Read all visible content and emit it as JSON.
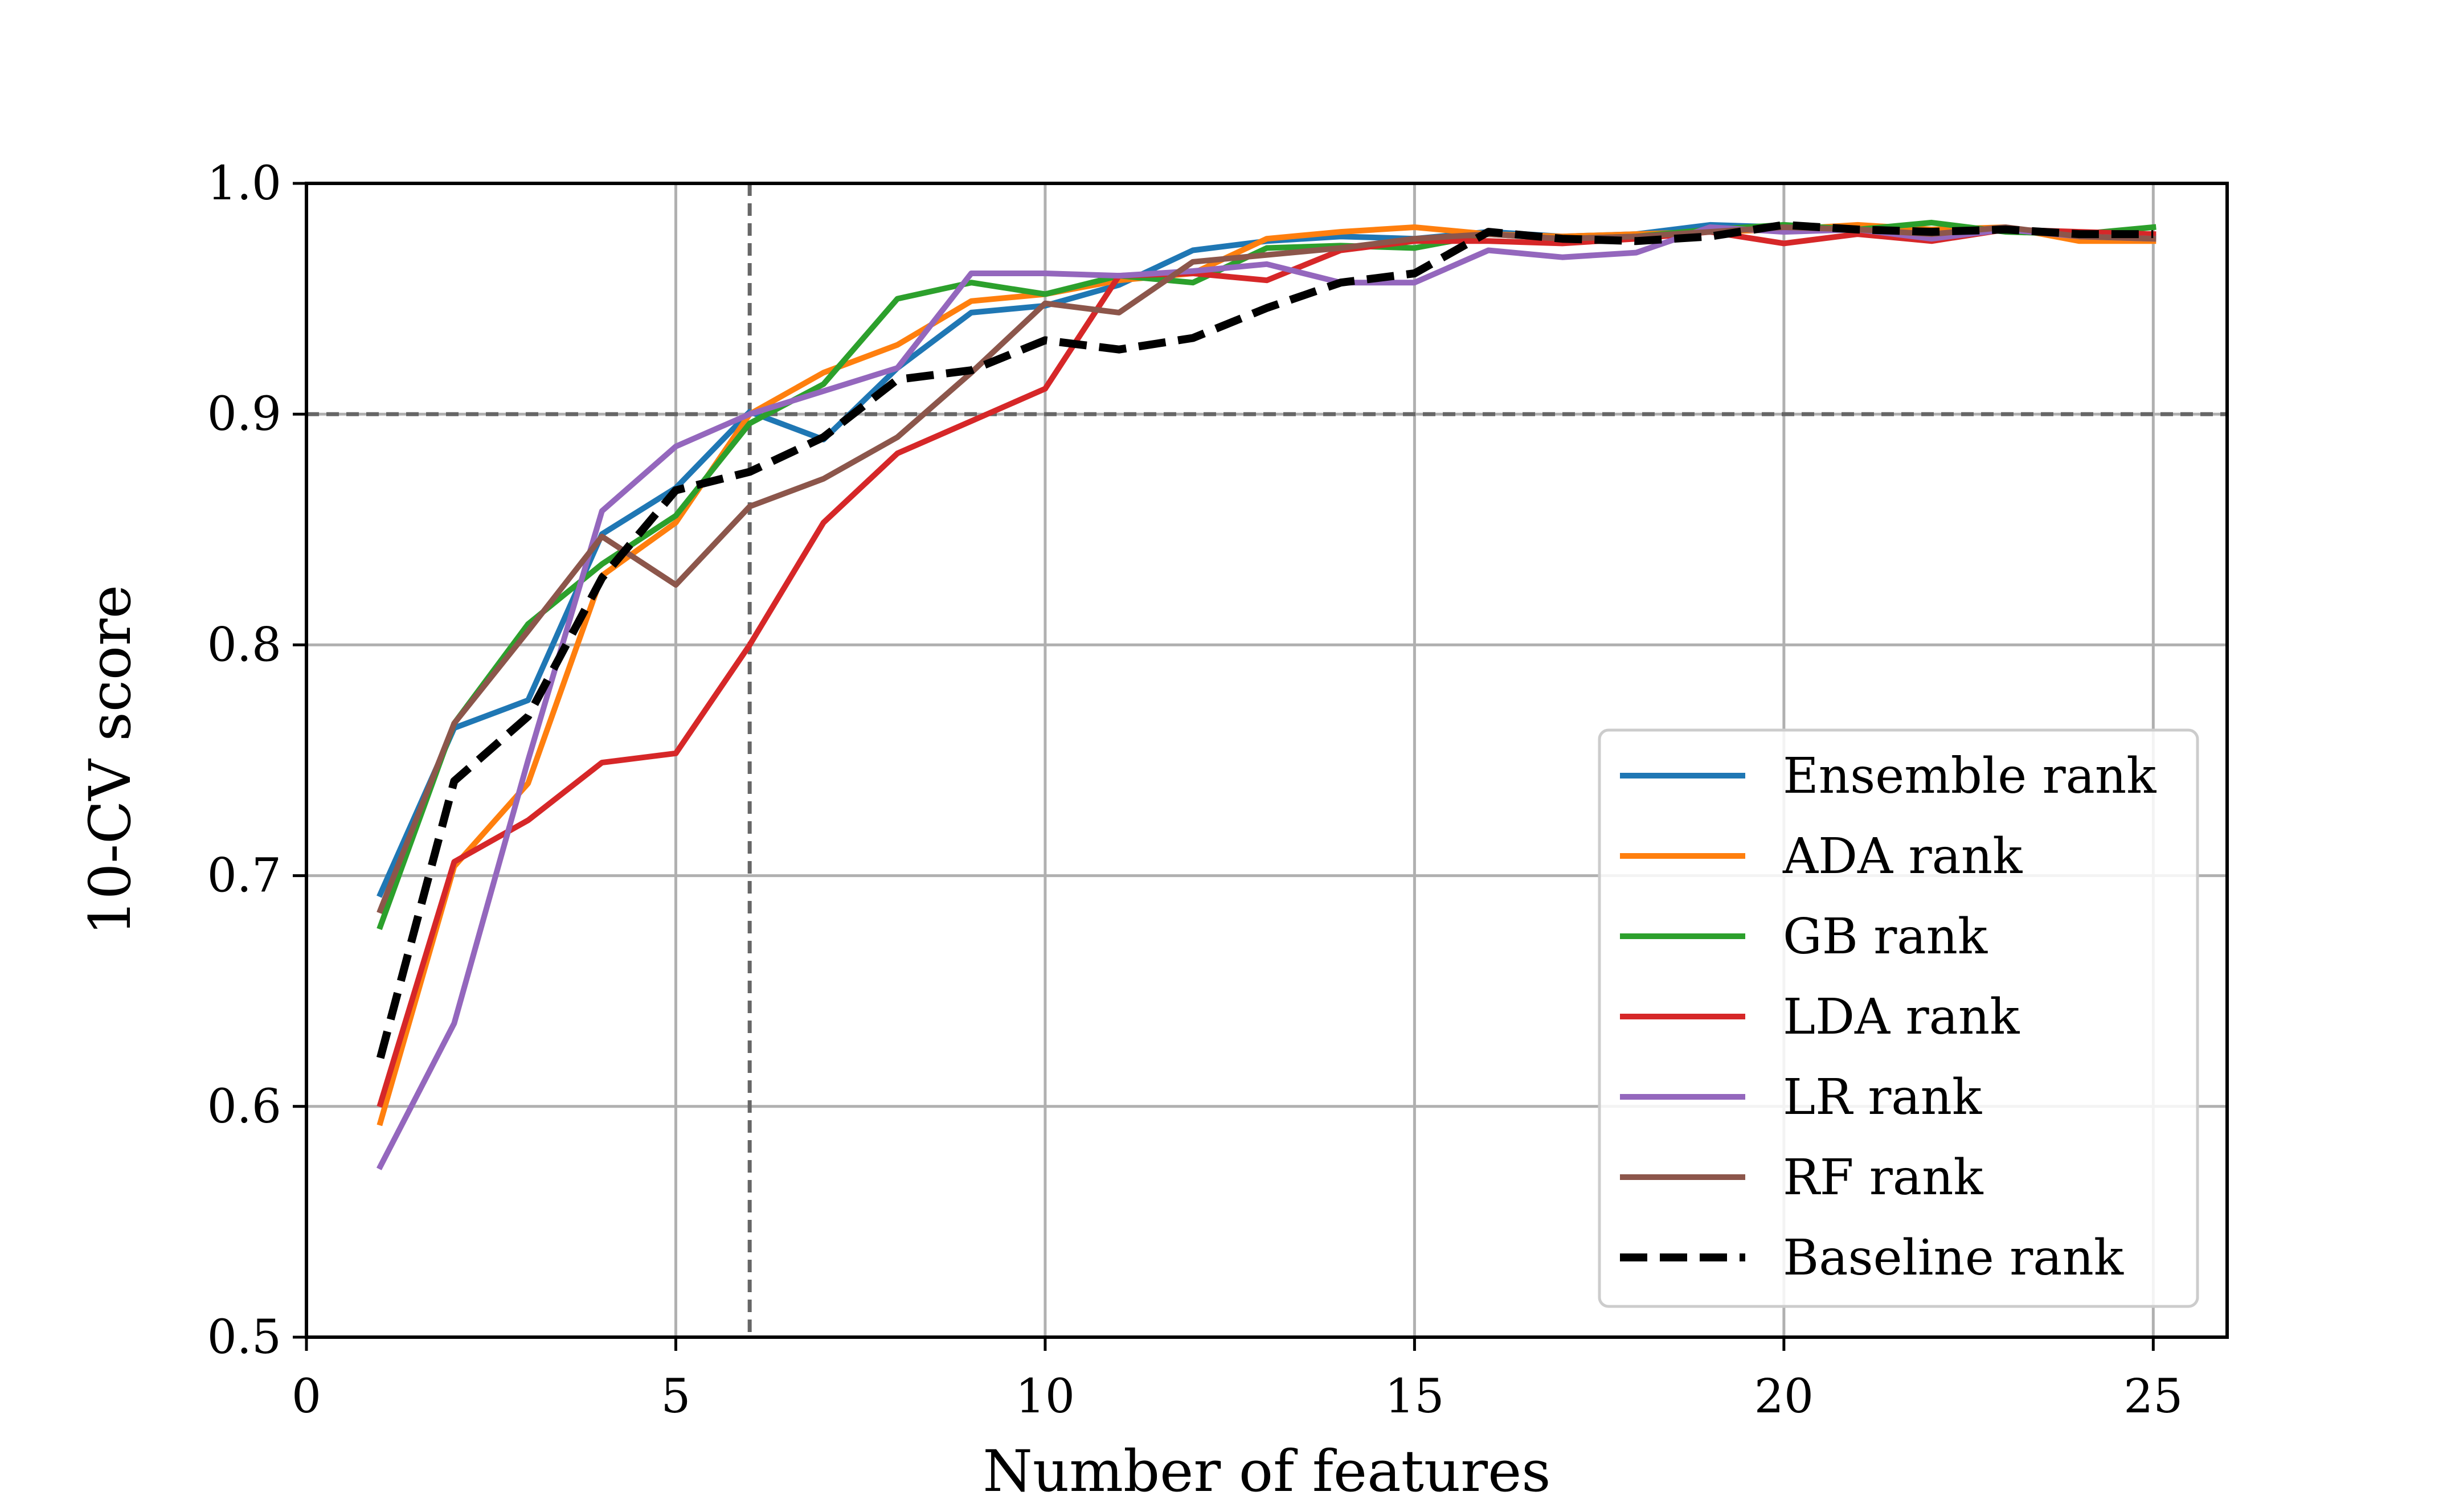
{
  "chart_data": {
    "type": "line",
    "xlabel": "Number of features",
    "ylabel": "10-CV score",
    "xlim": [
      0,
      26
    ],
    "ylim": [
      0.5,
      1.0
    ],
    "x_ticks": [
      0,
      5,
      10,
      15,
      20,
      25
    ],
    "y_ticks": [
      0.5,
      0.6,
      0.7,
      0.8,
      0.9,
      1.0
    ],
    "x_tick_labels": [
      "0",
      "5",
      "10",
      "15",
      "20",
      "25"
    ],
    "y_tick_labels": [
      "0.5",
      "0.6",
      "0.7",
      "0.8",
      "0.9",
      "1.0"
    ],
    "grid": true,
    "legend_position": "lower-right",
    "reference_lines": {
      "vertical_x": 6,
      "horizontal_y": 0.9,
      "color": "#666666",
      "style": "dashed"
    },
    "x": [
      1,
      2,
      3,
      4,
      5,
      6,
      7,
      8,
      9,
      10,
      11,
      12,
      13,
      14,
      15,
      16,
      17,
      18,
      19,
      20,
      21,
      22,
      23,
      24,
      25
    ],
    "series": [
      {
        "name": "Ensemble rank",
        "color": "#1f77b4",
        "dash": false,
        "values": [
          0.692,
          0.764,
          0.776,
          0.848,
          0.868,
          0.901,
          0.889,
          0.92,
          0.944,
          0.947,
          0.956,
          0.971,
          0.975,
          0.977,
          0.976,
          0.979,
          0.977,
          0.978,
          0.982,
          0.981,
          0.98,
          0.979,
          0.98,
          0.978,
          0.977
        ]
      },
      {
        "name": "ADA rank",
        "color": "#ff7f0e",
        "dash": false,
        "values": [
          0.593,
          0.704,
          0.74,
          0.83,
          0.853,
          0.9,
          0.918,
          0.93,
          0.949,
          0.952,
          0.958,
          0.961,
          0.976,
          0.979,
          0.981,
          0.978,
          0.977,
          0.978,
          0.979,
          0.98,
          0.982,
          0.98,
          0.981,
          0.975,
          0.975
        ]
      },
      {
        "name": "GB rank",
        "color": "#2ca02c",
        "dash": false,
        "values": [
          0.678,
          0.766,
          0.809,
          0.835,
          0.856,
          0.896,
          0.913,
          0.95,
          0.957,
          0.952,
          0.96,
          0.957,
          0.972,
          0.973,
          0.972,
          0.978,
          0.976,
          0.977,
          0.98,
          0.982,
          0.98,
          0.983,
          0.979,
          0.978,
          0.981
        ]
      },
      {
        "name": "LDA rank",
        "color": "#d62728",
        "dash": false,
        "values": [
          0.601,
          0.706,
          0.724,
          0.749,
          0.753,
          0.8,
          0.853,
          0.883,
          0.897,
          0.911,
          0.96,
          0.961,
          0.958,
          0.971,
          0.975,
          0.975,
          0.974,
          0.976,
          0.979,
          0.974,
          0.978,
          0.975,
          0.98,
          0.979,
          0.978
        ]
      },
      {
        "name": "LR rank",
        "color": "#9467bd",
        "dash": false,
        "values": [
          0.574,
          0.636,
          0.75,
          0.858,
          0.886,
          0.9,
          0.91,
          0.92,
          0.961,
          0.961,
          0.96,
          0.962,
          0.965,
          0.957,
          0.957,
          0.971,
          0.968,
          0.97,
          0.981,
          0.979,
          0.98,
          0.976,
          0.98,
          0.977,
          0.976
        ]
      },
      {
        "name": "RF rank",
        "color": "#8c564b",
        "dash": false,
        "values": [
          0.685,
          0.766,
          0.806,
          0.847,
          0.826,
          0.86,
          0.872,
          0.89,
          0.918,
          0.948,
          0.944,
          0.966,
          0.969,
          0.972,
          0.976,
          0.978,
          0.976,
          0.977,
          0.979,
          0.981,
          0.98,
          0.978,
          0.981,
          0.977,
          0.976
        ]
      },
      {
        "name": "Baseline rank",
        "color": "#000000",
        "dash": true,
        "values": [
          0.621,
          0.741,
          0.769,
          0.829,
          0.867,
          0.875,
          0.89,
          0.915,
          0.919,
          0.932,
          0.928,
          0.933,
          0.946,
          0.957,
          0.961,
          0.979,
          0.976,
          0.975,
          0.977,
          0.982,
          0.98,
          0.979,
          0.98,
          0.978,
          0.978
        ]
      }
    ]
  }
}
